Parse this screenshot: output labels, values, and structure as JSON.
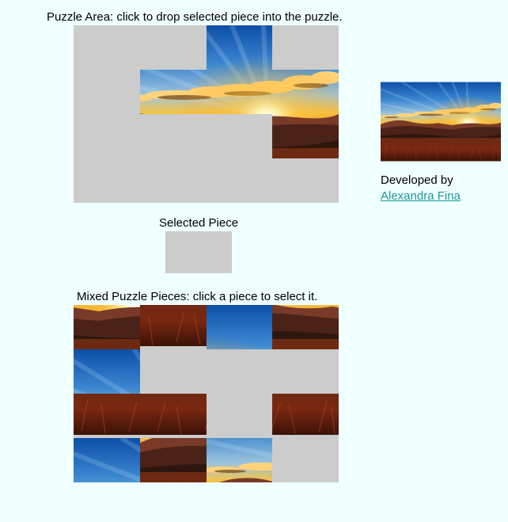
{
  "puzzle_area": {
    "caption": "Puzzle Area: click to drop selected piece into the puzzle.",
    "grid": [
      [
        null,
        null,
        2,
        null
      ],
      [
        null,
        5,
        6,
        7
      ],
      [
        null,
        null,
        null,
        11
      ],
      [
        null,
        null,
        null,
        null
      ]
    ]
  },
  "selected_piece": {
    "caption": "Selected Piece",
    "piece": null
  },
  "mixed_pieces": {
    "caption": "Mixed Puzzle Pieces: click a piece to select it.",
    "grid": [
      [
        10,
        13,
        3,
        9
      ],
      [
        1,
        null,
        null,
        null
      ],
      [
        12,
        14,
        null,
        15
      ],
      [
        0,
        8,
        4,
        null
      ]
    ]
  },
  "preview": {
    "image": "sunset-mountains"
  },
  "credit": {
    "text": "Developed by",
    "author": "Alexandra Fina"
  },
  "colors": {
    "background": "#f0ffff",
    "empty_slot": "#cccccc",
    "link": "#1a9a9a"
  }
}
